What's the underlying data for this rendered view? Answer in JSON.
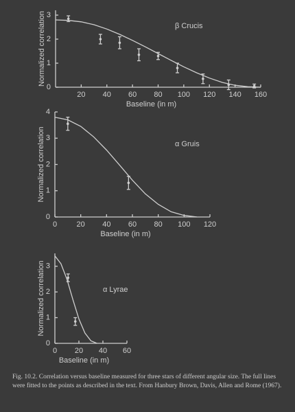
{
  "chart_data": [
    {
      "type": "errorbar",
      "title": "β Crucis",
      "xlabel": "Baseline (in m)",
      "ylabel": "Normalized correlation",
      "xlim": [
        0,
        160
      ],
      "ylim": [
        0,
        3.2
      ],
      "xticks": [
        20,
        40,
        60,
        80,
        100,
        120,
        140,
        160
      ],
      "yticks": [
        0,
        1,
        2,
        3
      ],
      "points": {
        "x": [
          10,
          35,
          50,
          65,
          80,
          95,
          115,
          135,
          155
        ],
        "values": [
          2.85,
          2.0,
          1.85,
          1.35,
          1.3,
          0.8,
          0.35,
          0.1,
          0.05
        ],
        "errors": [
          0.12,
          0.2,
          0.25,
          0.25,
          0.15,
          0.2,
          0.2,
          0.2,
          0.08
        ]
      },
      "fit": {
        "x": [
          0,
          10,
          20,
          30,
          40,
          50,
          60,
          70,
          80,
          90,
          100,
          110,
          120,
          130,
          140,
          150,
          160
        ],
        "values": [
          2.8,
          2.78,
          2.72,
          2.6,
          2.42,
          2.2,
          1.95,
          1.68,
          1.4,
          1.12,
          0.85,
          0.6,
          0.38,
          0.2,
          0.08,
          0.02,
          0
        ]
      }
    },
    {
      "type": "errorbar",
      "title": "α Gruis",
      "xlabel": "Baseline (in m)",
      "ylabel": "Normalized correlation",
      "xlim": [
        0,
        120
      ],
      "ylim": [
        0,
        4
      ],
      "xticks": [
        0,
        20,
        40,
        60,
        80,
        100,
        120
      ],
      "yticks": [
        0,
        1,
        2,
        3,
        4
      ],
      "points": {
        "x": [
          10,
          57
        ],
        "values": [
          3.55,
          1.3
        ],
        "errors": [
          0.25,
          0.25
        ]
      },
      "fit": {
        "x": [
          0,
          10,
          20,
          30,
          40,
          50,
          60,
          70,
          80,
          90,
          100,
          110
        ],
        "values": [
          3.8,
          3.7,
          3.45,
          3.05,
          2.55,
          1.98,
          1.4,
          0.88,
          0.48,
          0.2,
          0.06,
          0
        ]
      }
    },
    {
      "type": "errorbar",
      "title": "α Lyrae",
      "xlabel": "Baseline (in m)",
      "ylabel": "Normalized correlation",
      "xlim": [
        0,
        60
      ],
      "ylim": [
        0,
        3.5
      ],
      "xticks": [
        0,
        20,
        40,
        60
      ],
      "yticks": [
        0,
        1,
        2,
        3
      ],
      "points": {
        "x": [
          11,
          17
        ],
        "values": [
          2.55,
          0.85
        ],
        "errors": [
          0.15,
          0.15
        ]
      },
      "fit": {
        "x": [
          0,
          5,
          10,
          15,
          20,
          25,
          30,
          35
        ],
        "values": [
          3.4,
          3.1,
          2.5,
          1.7,
          0.95,
          0.4,
          0.1,
          0
        ]
      }
    }
  ],
  "caption": "Fig. 10.2.  Correlation versus baseline measured for three stars of different angular size.  The full lines were fitted to the points as described in the text.  From Hanbury Brown, Davis, Allen and Rome (1967)."
}
